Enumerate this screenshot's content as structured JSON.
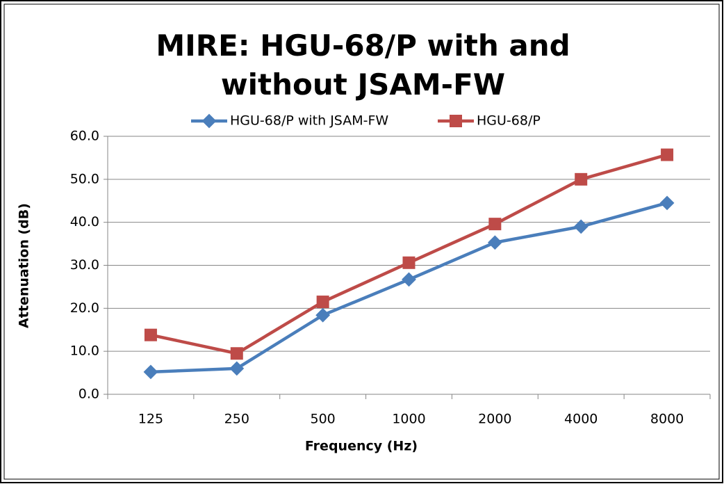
{
  "chart_data": {
    "type": "line",
    "title": "MIRE: HGU-68/P with and without JSAM-FW",
    "x_label": "Frequency (Hz)",
    "y_label": "Attenuation (dB)",
    "categories": [
      "125",
      "250",
      "500",
      "1000",
      "2000",
      "4000",
      "8000"
    ],
    "series": [
      {
        "name": "HGU-68/P with JSAM-FW",
        "color": "#4a7ebb",
        "marker": "diamond",
        "values": [
          5.2,
          6.0,
          18.4,
          26.7,
          35.3,
          39.0,
          44.5
        ]
      },
      {
        "name": "HGU-68/P",
        "color": "#be4b48",
        "marker": "square",
        "values": [
          13.8,
          9.5,
          21.5,
          30.6,
          39.6,
          50.0,
          55.7
        ]
      }
    ],
    "ylim": [
      0,
      60
    ],
    "yticks": [
      {
        "value": 0,
        "label": "0.0"
      },
      {
        "value": 10,
        "label": "10.0"
      },
      {
        "value": 20,
        "label": "20.0"
      },
      {
        "value": 30,
        "label": "30.0"
      },
      {
        "value": 40,
        "label": "40.0"
      },
      {
        "value": 50,
        "label": "50.0"
      },
      {
        "value": 60,
        "label": "60.0"
      }
    ],
    "grid": true,
    "legend": "top"
  }
}
